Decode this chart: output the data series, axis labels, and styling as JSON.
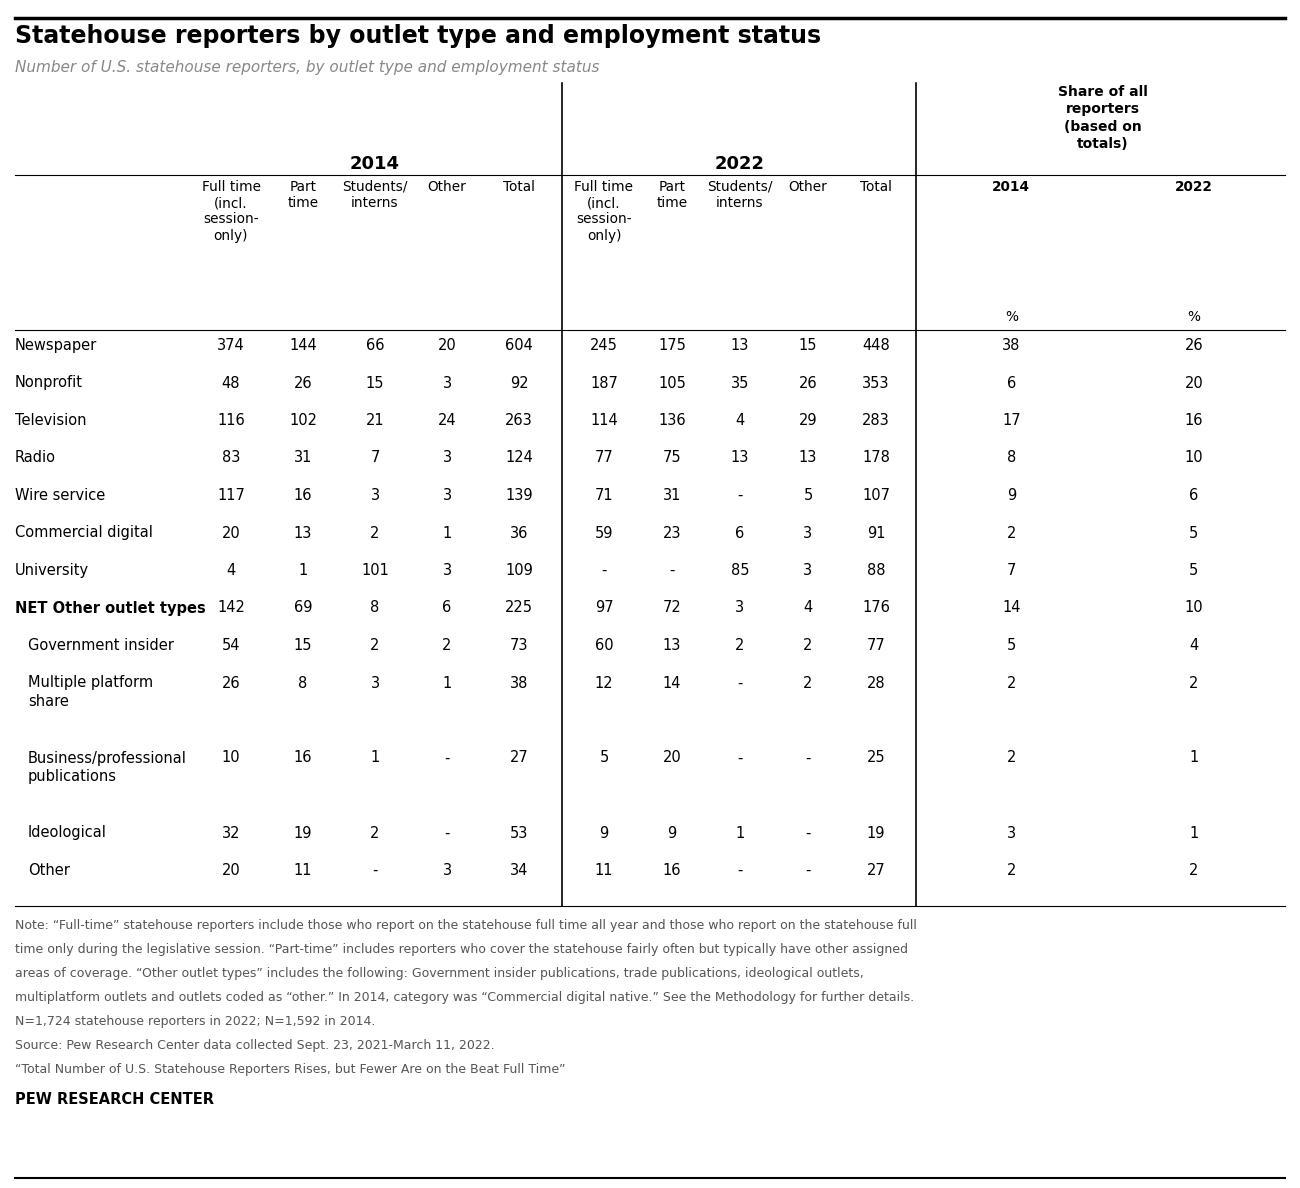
{
  "title": "Statehouse reporters by outlet type and employment status",
  "subtitle": "Number of U.S. statehouse reporters, by outlet type and employment status",
  "rows": [
    {
      "label": "Newspaper",
      "bold": false,
      "indent": false,
      "data": [
        "374",
        "144",
        "66",
        "20",
        "604",
        "245",
        "175",
        "13",
        "15",
        "448",
        "38",
        "26"
      ]
    },
    {
      "label": "Nonprofit",
      "bold": false,
      "indent": false,
      "data": [
        "48",
        "26",
        "15",
        "3",
        "92",
        "187",
        "105",
        "35",
        "26",
        "353",
        "6",
        "20"
      ]
    },
    {
      "label": "Television",
      "bold": false,
      "indent": false,
      "data": [
        "116",
        "102",
        "21",
        "24",
        "263",
        "114",
        "136",
        "4",
        "29",
        "283",
        "17",
        "16"
      ]
    },
    {
      "label": "Radio",
      "bold": false,
      "indent": false,
      "data": [
        "83",
        "31",
        "7",
        "3",
        "124",
        "77",
        "75",
        "13",
        "13",
        "178",
        "8",
        "10"
      ]
    },
    {
      "label": "Wire service",
      "bold": false,
      "indent": false,
      "data": [
        "117",
        "16",
        "3",
        "3",
        "139",
        "71",
        "31",
        "-",
        "5",
        "107",
        "9",
        "6"
      ]
    },
    {
      "label": "Commercial digital",
      "bold": false,
      "indent": false,
      "data": [
        "20",
        "13",
        "2",
        "1",
        "36",
        "59",
        "23",
        "6",
        "3",
        "91",
        "2",
        "5"
      ]
    },
    {
      "label": "University",
      "bold": false,
      "indent": false,
      "data": [
        "4",
        "1",
        "101",
        "3",
        "109",
        "-",
        "-",
        "85",
        "3",
        "88",
        "7",
        "5"
      ]
    },
    {
      "label": "NET Other outlet types",
      "bold": true,
      "indent": false,
      "data": [
        "142",
        "69",
        "8",
        "6",
        "225",
        "97",
        "72",
        "3",
        "4",
        "176",
        "14",
        "10"
      ]
    },
    {
      "label": "Government insider",
      "bold": false,
      "indent": true,
      "data": [
        "54",
        "15",
        "2",
        "2",
        "73",
        "60",
        "13",
        "2",
        "2",
        "77",
        "5",
        "4"
      ]
    },
    {
      "label": "Multiple platform\nshare",
      "bold": false,
      "indent": true,
      "data": [
        "26",
        "8",
        "3",
        "1",
        "38",
        "12",
        "14",
        "-",
        "2",
        "28",
        "2",
        "2"
      ]
    },
    {
      "label": "Business/professional\npublications",
      "bold": false,
      "indent": true,
      "data": [
        "10",
        "16",
        "1",
        "-",
        "27",
        "5",
        "20",
        "-",
        "-",
        "25",
        "2",
        "1"
      ]
    },
    {
      "label": "Ideological",
      "bold": false,
      "indent": true,
      "data": [
        "32",
        "19",
        "2",
        "-",
        "53",
        "9",
        "9",
        "1",
        "-",
        "19",
        "3",
        "1"
      ]
    },
    {
      "label": "Other",
      "bold": false,
      "indent": true,
      "data": [
        "20",
        "11",
        "-",
        "3",
        "34",
        "11",
        "16",
        "-",
        "-",
        "27",
        "2",
        "2"
      ]
    }
  ],
  "note_lines": [
    "Note: “Full-time” statehouse reporters include those who report on the statehouse full time all year and those who report on the statehouse full",
    "time only during the legislative session. “Part-time” includes reporters who cover the statehouse fairly often but typically have other assigned",
    "areas of coverage. “Other outlet types” includes the following: Government insider publications, trade publications, ideological outlets,",
    "multiplatform outlets and outlets coded as “other.” In 2014, category was “Commercial digital native.” See the Methodology for further details.",
    "N=1,724 statehouse reporters in 2022; N=1,592 in 2014.",
    "Source: Pew Research Center data collected Sept. 23, 2021-March 11, 2022.",
    "“Total Number of U.S. Statehouse Reporters Rises, but Fewer Are on the Beat Full Time”"
  ],
  "pew_label": "PEW RESEARCH CENTER",
  "bg_color": "#ffffff",
  "title_color": "#000000",
  "subtitle_color": "#888888",
  "text_color": "#000000",
  "note_color": "#555555"
}
